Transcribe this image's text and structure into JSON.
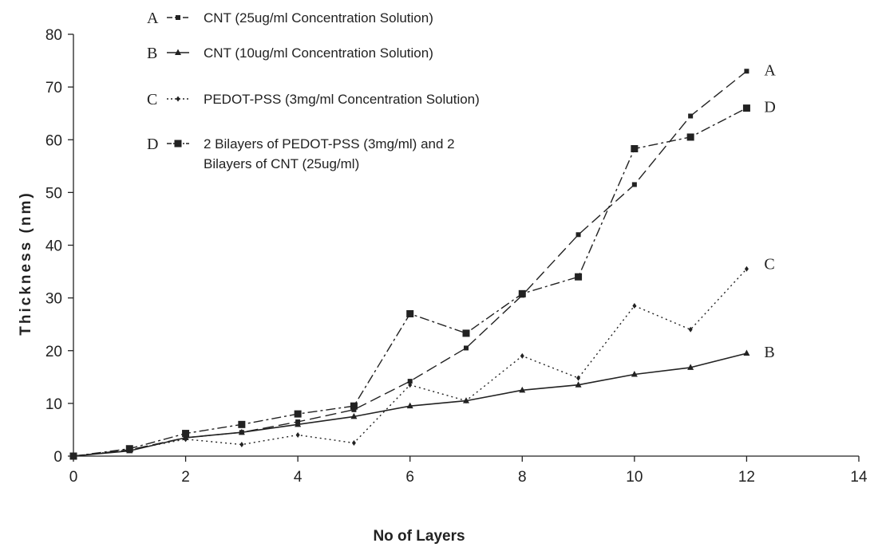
{
  "chart_data": {
    "type": "line",
    "xlabel": "No of Layers",
    "ylabel": "Thickness (nm)",
    "xlim": [
      0,
      14
    ],
    "ylim": [
      0,
      80
    ],
    "xticks": [
      0,
      2,
      4,
      6,
      8,
      10,
      12,
      14
    ],
    "yticks": [
      0,
      10,
      20,
      30,
      40,
      50,
      60,
      70,
      80
    ],
    "grid": false,
    "legend_position": "top-left",
    "series": [
      {
        "letter": "A",
        "name": "CNT (25ug/ml Concentration Solution)",
        "x": [
          0,
          1,
          2,
          3,
          4,
          5,
          6,
          7,
          8,
          9,
          10,
          11,
          12
        ],
        "y": [
          0,
          1.2,
          3.5,
          4.5,
          6.5,
          8.8,
          14.2,
          20.5,
          30.5,
          42,
          51.5,
          64.5,
          73
        ],
        "dash": "14,6",
        "marker": "small-square",
        "end_label": "A"
      },
      {
        "letter": "B",
        "name": "CNT (10ug/ml Concentration Solution)",
        "x": [
          0,
          1,
          2,
          3,
          4,
          5,
          6,
          7,
          8,
          9,
          10,
          11,
          12
        ],
        "y": [
          0,
          1,
          3.5,
          4.5,
          6,
          7.5,
          9.5,
          10.5,
          12.5,
          13.5,
          15.5,
          16.8,
          19.5
        ],
        "dash": "",
        "marker": "triangle",
        "end_label": "B"
      },
      {
        "letter": "C",
        "name": "PEDOT-PSS (3mg/ml Concentration Solution)",
        "x": [
          0,
          1,
          2,
          3,
          4,
          5,
          6,
          7,
          8,
          9,
          10,
          11,
          12
        ],
        "y": [
          0,
          1.2,
          3.2,
          2.2,
          4,
          2.5,
          13.5,
          10.5,
          19,
          14.8,
          28.5,
          24,
          35.5
        ],
        "dash": "2,4",
        "marker": "diamond",
        "end_label": "C"
      },
      {
        "letter": "D",
        "name_lines": [
          "2 Bilayers of PEDOT-PSS (3mg/ml)  and 2",
          "Bilayers of CNT (25ug/ml)"
        ],
        "x": [
          0,
          1,
          2,
          3,
          4,
          5,
          6,
          7,
          8,
          9,
          10,
          11,
          12
        ],
        "y": [
          0,
          1.4,
          4.3,
          6,
          8,
          9.5,
          27,
          23.3,
          30.8,
          34,
          58.3,
          60.5,
          66
        ],
        "dash": "12,4,3,4",
        "marker": "square",
        "end_label": "D"
      }
    ]
  }
}
